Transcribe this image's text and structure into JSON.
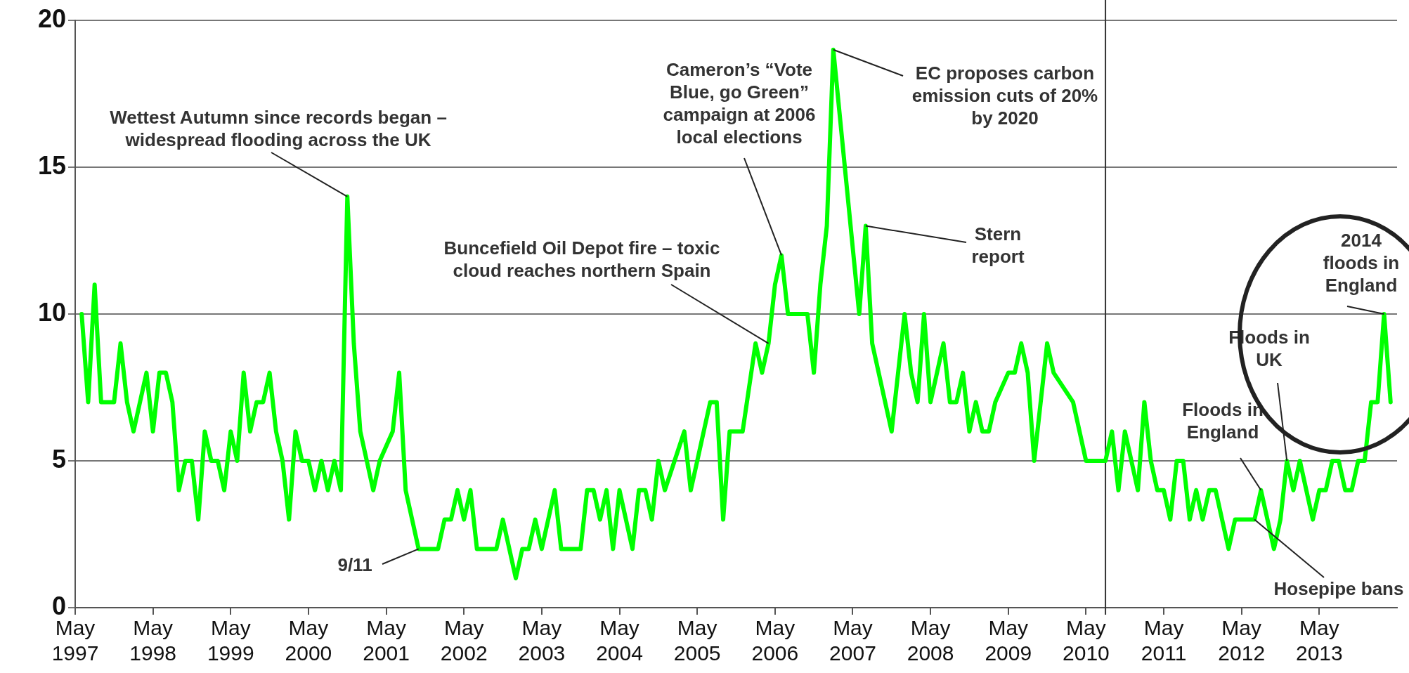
{
  "chart_data": {
    "type": "line",
    "color": "#00ff00",
    "line_style": "solid",
    "grid": "y",
    "legend": false,
    "x": [
      "1997-06",
      "1997-07",
      "1997-08",
      "1997-09",
      "1997-11",
      "1997-12",
      "1998-01",
      "1998-02",
      "1998-04",
      "1998-05",
      "1998-06",
      "1998-07",
      "1998-08",
      "1998-09",
      "1998-10",
      "1998-11",
      "1998-12",
      "1999-01",
      "1999-02",
      "1999-03",
      "1999-04",
      "1999-05",
      "1999-06",
      "1999-07",
      "1999-08",
      "1999-09",
      "1999-10",
      "1999-11",
      "1999-12",
      "2000-01",
      "2000-02",
      "2000-03",
      "2000-04",
      "2000-05",
      "2000-06",
      "2000-07",
      "2000-08",
      "2000-09",
      "2000-10",
      "2000-11",
      "2000-12",
      "2001-01",
      "2001-03",
      "2001-04",
      "2001-06",
      "2001-07",
      "2001-08",
      "2001-10",
      "2002-01",
      "2002-02",
      "2002-03",
      "2002-04",
      "2002-05",
      "2002-06",
      "2002-07",
      "2002-10",
      "2002-11",
      "2003-01",
      "2003-02",
      "2003-03",
      "2003-04",
      "2003-05",
      "2003-07",
      "2003-08",
      "2003-11",
      "2003-12",
      "2004-01",
      "2004-02",
      "2004-03",
      "2004-04",
      "2004-05",
      "2004-07",
      "2004-08",
      "2004-09",
      "2004-10",
      "2004-11",
      "2004-12",
      "2005-03",
      "2005-04",
      "2005-07",
      "2005-08",
      "2005-09",
      "2005-10",
      "2005-12",
      "2006-02",
      "2006-03",
      "2006-04",
      "2006-05",
      "2006-06",
      "2006-07",
      "2006-10",
      "2006-11",
      "2006-12",
      "2007-01",
      "2007-02",
      "2007-06",
      "2007-07",
      "2007-08",
      "2007-11",
      "2008-01",
      "2008-02",
      "2008-03",
      "2008-04",
      "2008-05",
      "2008-07",
      "2008-08",
      "2008-09",
      "2008-10",
      "2008-11",
      "2008-12",
      "2009-01",
      "2009-02",
      "2009-03",
      "2009-05",
      "2009-06",
      "2009-07",
      "2009-08",
      "2009-09",
      "2009-11",
      "2009-12",
      "2010-03",
      "2010-05",
      "2010-08",
      "2010-09",
      "2010-10",
      "2010-11",
      "2011-01",
      "2011-02",
      "2011-03",
      "2011-04",
      "2011-05",
      "2011-06",
      "2011-07",
      "2011-08",
      "2011-09",
      "2011-10",
      "2011-11",
      "2011-12",
      "2012-01",
      "2012-03",
      "2012-04",
      "2012-07",
      "2012-08",
      "2012-10",
      "2012-11",
      "2012-12",
      "2013-01",
      "2013-02",
      "2013-04",
      "2013-05",
      "2013-06",
      "2013-07",
      "2013-08",
      "2013-09",
      "2013-10",
      "2013-11",
      "2013-12",
      "2014-01",
      "2014-02",
      "2014-03",
      "2014-04"
    ],
    "values": [
      10,
      7,
      11,
      7,
      7,
      9,
      7,
      6,
      8,
      6,
      8,
      8,
      7,
      4,
      5,
      5,
      3,
      6,
      5,
      5,
      4,
      6,
      5,
      8,
      6,
      7,
      7,
      8,
      6,
      5,
      3,
      6,
      5,
      5,
      4,
      5,
      4,
      5,
      4,
      14,
      9,
      6,
      4,
      5,
      6,
      8,
      4,
      2,
      2,
      3,
      3,
      4,
      3,
      4,
      2,
      2,
      3,
      1,
      2,
      2,
      3,
      2,
      4,
      2,
      2,
      4,
      4,
      3,
      4,
      2,
      4,
      2,
      4,
      4,
      3,
      5,
      4,
      6,
      4,
      7,
      7,
      3,
      6,
      6,
      9,
      8,
      9,
      11,
      12,
      10,
      10,
      8,
      11,
      13,
      19,
      10,
      13,
      9,
      6,
      10,
      8,
      7,
      10,
      7,
      9,
      7,
      7,
      8,
      6,
      7,
      6,
      6,
      7,
      8,
      8,
      9,
      8,
      5,
      9,
      8,
      7,
      5,
      5,
      6,
      4,
      6,
      4,
      7,
      5,
      4,
      4,
      3,
      5,
      5,
      3,
      4,
      3,
      4,
      4,
      2,
      3,
      3,
      4,
      2,
      3,
      5,
      4,
      5,
      3,
      4,
      4,
      5,
      5,
      4,
      4,
      5,
      5,
      7,
      7,
      10,
      7
    ],
    "xlim": [
      "1997-05",
      "2014-05"
    ],
    "xticks": [
      {
        "value": "1997-05",
        "label": "May 1997"
      },
      {
        "value": "1998-05",
        "label": "May 1998"
      },
      {
        "value": "1999-05",
        "label": "May 1999"
      },
      {
        "value": "2000-05",
        "label": "May 2000"
      },
      {
        "value": "2001-05",
        "label": "May 2001"
      },
      {
        "value": "2002-05",
        "label": "May 2002"
      },
      {
        "value": "2003-05",
        "label": "May 2003"
      },
      {
        "value": "2004-05",
        "label": "May 2004"
      },
      {
        "value": "2005-05",
        "label": "May 2005"
      },
      {
        "value": "2006-05",
        "label": "May 2006"
      },
      {
        "value": "2007-05",
        "label": "May 2007"
      },
      {
        "value": "2008-05",
        "label": "May 2008"
      },
      {
        "value": "2009-05",
        "label": "May 2009"
      },
      {
        "value": "2010-05",
        "label": "May 2010"
      },
      {
        "value": "2011-05",
        "label": "May 2011"
      },
      {
        "value": "2012-05",
        "label": "May 2012"
      },
      {
        "value": "2013-05",
        "label": "May 2013"
      }
    ],
    "ylim": [
      0,
      20
    ],
    "yticks": [
      0,
      5,
      10,
      15,
      20
    ],
    "ref_lines": [
      {
        "axis": "x",
        "value": "2010-08",
        "color": "#333333"
      }
    ],
    "annotations": [
      {
        "text": "Wettest Autumn since records began – widespread flooding across the UK",
        "x": "2000-11",
        "y": 14
      },
      {
        "text": "9/11",
        "x": "2001-10",
        "y": 2
      },
      {
        "text": "Buncefield Oil Depot fire – toxic cloud reaches northern Spain",
        "x": "2006-04",
        "y": 9
      },
      {
        "text": "Cameron’s “Vote Blue, go Green” campaign at 2006 local elections",
        "x": "2006-06",
        "y": 12
      },
      {
        "text": "EC proposes carbon emission cuts of 20% by 2020",
        "x": "2007-02",
        "y": 19
      },
      {
        "text": "Stern report",
        "x": "2007-07",
        "y": 13
      },
      {
        "text": "Floods in England",
        "x": "2012-08",
        "y": 4
      },
      {
        "text": "Hosepipe bans",
        "x": "2012-07",
        "y": 3
      },
      {
        "text": "Floods in UK",
        "x": "2012-12",
        "y": 5
      },
      {
        "text": "2014 floods in England",
        "x": "2014-03",
        "y": 10
      }
    ]
  }
}
